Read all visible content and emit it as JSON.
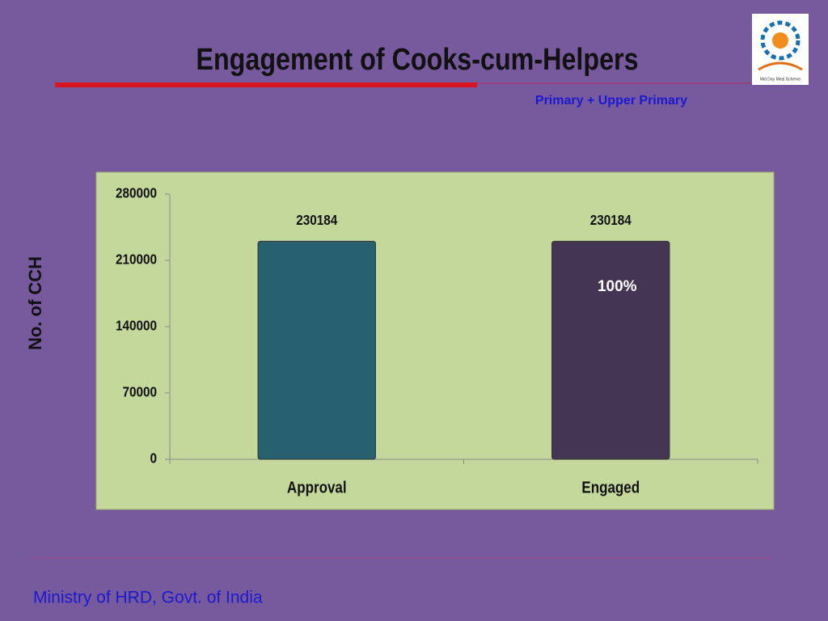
{
  "chart_data": {
    "type": "bar",
    "title": "Engagement  of Cooks-cum-Helpers",
    "subtitle": "Primary + Upper Primary",
    "y_label": "No. of  CCH",
    "categories": [
      "Approval",
      "Engaged"
    ],
    "values": [
      230184,
      230184
    ],
    "colors": [
      "#27606f",
      "#443552"
    ],
    "ylim": [
      0,
      280000
    ],
    "yticks": [
      0,
      70000,
      140000,
      210000,
      280000
    ],
    "grid": false,
    "annotation": "100%"
  },
  "footer": "Ministry of HRD, Govt. of India",
  "logo": "Mid Day Meal Scheme"
}
